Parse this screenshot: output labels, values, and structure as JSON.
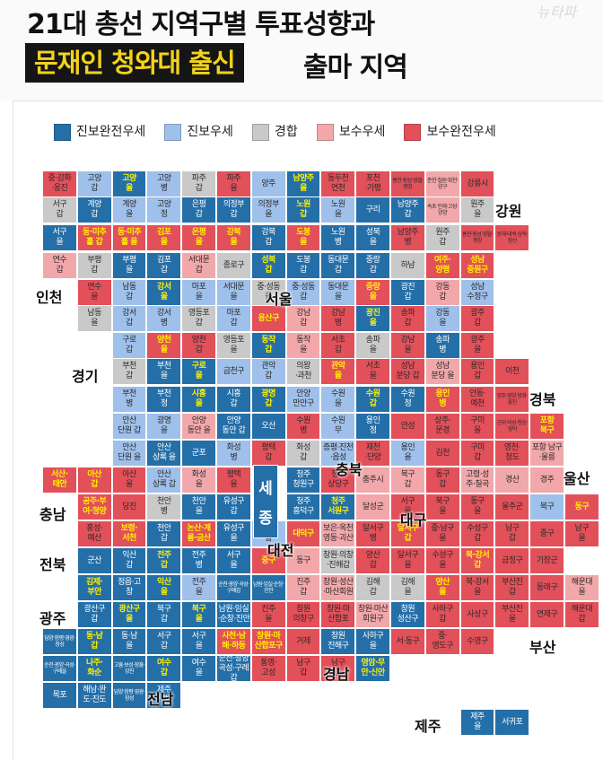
{
  "header": {
    "title": "21대 총선 지역구별 투표성향과",
    "highlight": "문재인 청와대 출신",
    "title_suffix": "출마 지역",
    "watermark": "뉴타파"
  },
  "legend": [
    {
      "label": "진보완전우세",
      "color": "#256fa8"
    },
    {
      "label": "진보우세",
      "color": "#9fc0ea"
    },
    {
      "label": "경합",
      "color": "#c9c9c9"
    },
    {
      "label": "보수우세",
      "color": "#f2a8ab"
    },
    {
      "label": "보수완전우세",
      "color": "#e2505a"
    }
  ],
  "colors": {
    "A": "#256fa8",
    "B": "#9fc0ea",
    "C": "#c9c9c9",
    "D": "#f2a8ab",
    "E": "#e2505a",
    "highlight_text": "#fff200"
  },
  "regions": [
    {
      "name": "강원"
    },
    {
      "name": "인천"
    },
    {
      "name": "서울"
    },
    {
      "name": "경기"
    },
    {
      "name": "경북"
    },
    {
      "name": "충북"
    },
    {
      "name": "울산"
    },
    {
      "name": "충남"
    },
    {
      "name": "대구"
    },
    {
      "name": "대전"
    },
    {
      "name": "전북"
    },
    {
      "name": "광주"
    },
    {
      "name": "부산"
    },
    {
      "name": "경남"
    },
    {
      "name": "전남"
    },
    {
      "name": "제주"
    }
  ],
  "sejong": {
    "line1": "세",
    "line2": "종"
  },
  "cells": [
    [
      "중·강화\n·옹진",
      "E",
      0
    ],
    [
      "고양\n갑",
      "B",
      0
    ],
    [
      "고양\n을",
      "A",
      1
    ],
    [
      "고양\n병",
      "B",
      0
    ],
    [
      "파주\n갑",
      "C",
      0
    ],
    [
      "파주\n을",
      "E",
      0
    ],
    [
      "양주",
      "B",
      0
    ],
    [
      "남양주\n을",
      "A",
      1
    ],
    [
      "동두천\n연천",
      "E",
      0
    ],
    [
      "포천\n·가평",
      "E",
      0
    ],
    [
      "홍천·횡성·영월·평창",
      "E",
      2
    ],
    [
      "춘천·철원·화천·양구",
      "D",
      2
    ],
    [
      "강릉시",
      "E",
      0
    ],
    [
      "서구\n갑",
      "C",
      0
    ],
    [
      "계양\n갑",
      "A",
      0
    ],
    [
      "계양\n을",
      "B",
      0
    ],
    [
      "고양\n정",
      "B",
      0
    ],
    [
      "은평\n갑",
      "A",
      0
    ],
    [
      "의정부\n갑",
      "A",
      0
    ],
    [
      "의정부\n을",
      "B",
      0
    ],
    [
      "노원\n갑",
      "A",
      1
    ],
    [
      "노원\n을",
      "B",
      0
    ],
    [
      "구리",
      "A",
      0
    ],
    [
      "남양주\n갑",
      "A",
      0
    ],
    [
      "속초·인제·고성·양양",
      "D",
      2
    ],
    [
      "원주\n을",
      "C",
      0
    ],
    [
      "서구\n을",
      "A",
      0
    ],
    [
      "동·미추\n홀 갑",
      "E",
      1
    ],
    [
      "동·미추\n홀 을",
      "E",
      1
    ],
    [
      "김포\n을",
      "E",
      1
    ],
    [
      "은평\n을",
      "E",
      1
    ],
    [
      "강북\n을",
      "E",
      1
    ],
    [
      "강북\n갑",
      "A",
      0
    ],
    [
      "도봉\n을",
      "E",
      1
    ],
    [
      "노원\n병",
      "A",
      0
    ],
    [
      "성북\n을",
      "A",
      0
    ],
    [
      "남양주\n병",
      "E",
      0
    ],
    [
      "원주\n갑",
      "C",
      0
    ],
    [
      "홍천·횡성·영월·평창",
      "E",
      2
    ],
    [
      "동해·태백·삼척·정선",
      "E",
      2
    ],
    [
      "연수\n갑",
      "D",
      0
    ],
    [
      "부평\n갑",
      "C",
      0
    ],
    [
      "부평\n을",
      "A",
      0
    ],
    [
      "김포\n갑",
      "A",
      0
    ],
    [
      "서대문\n갑",
      "D",
      0
    ],
    [
      "종로구",
      "C",
      0
    ],
    [
      "성북\n갑",
      "A",
      1
    ],
    [
      "도봉\n갑",
      "A",
      0
    ],
    [
      "동대문\n갑",
      "A",
      0
    ],
    [
      "중랑\n갑",
      "A",
      0
    ],
    [
      "하남",
      "C",
      0
    ],
    [
      "여주·\n양평",
      "E",
      1
    ],
    [
      "성남\n중원구",
      "E",
      1
    ],
    [
      "연수\n을",
      "E",
      0
    ],
    [
      "남동\n갑",
      "B",
      0
    ],
    [
      "강서\n을",
      "A",
      1
    ],
    [
      "마포\n을",
      "B",
      0
    ],
    [
      "서대문\n을",
      "B",
      0
    ],
    [
      "중·성동\n을",
      "C",
      0
    ],
    [
      "중·성동\n갑",
      "B",
      0
    ],
    [
      "동대문\n을",
      "B",
      0
    ],
    [
      "중랑\n을",
      "E",
      1
    ],
    [
      "광진\n갑",
      "A",
      0
    ],
    [
      "강동\n갑",
      "D",
      0
    ],
    [
      "성남\n수정구",
      "B",
      0
    ],
    [
      "남동\n을",
      "C",
      0
    ],
    [
      "강서\n갑",
      "B",
      0
    ],
    [
      "강서\n병",
      "B",
      0
    ],
    [
      "영등포\n갑",
      "C",
      0
    ],
    [
      "마포\n갑",
      "B",
      0
    ],
    [
      "용산구",
      "E",
      1
    ],
    [
      "강남\n갑",
      "D",
      0
    ],
    [
      "강남\n병",
      "E",
      0
    ],
    [
      "광진\n을",
      "A",
      1
    ],
    [
      "송파\n갑",
      "E",
      0
    ],
    [
      "강동\n을",
      "B",
      0
    ],
    [
      "광주\n갑",
      "E",
      0
    ],
    [
      "구로\n갑",
      "B",
      0
    ],
    [
      "양천\n을",
      "E",
      1
    ],
    [
      "양천\n갑",
      "E",
      0
    ],
    [
      "영등포\n을",
      "C",
      0
    ],
    [
      "동작\n갑",
      "A",
      1
    ],
    [
      "동작\n을",
      "D",
      0
    ],
    [
      "서초\n갑",
      "E",
      0
    ],
    [
      "송파\n을",
      "C",
      0
    ],
    [
      "강남\n을",
      "E",
      0
    ],
    [
      "송파\n병",
      "A",
      0
    ],
    [
      "광주\n을",
      "E",
      0
    ],
    [
      "부천\n갑",
      "C",
      0
    ],
    [
      "부천\n을",
      "A",
      0
    ],
    [
      "구로\n을",
      "A",
      1
    ],
    [
      "금천구",
      "B",
      0
    ],
    [
      "관악\n갑",
      "B",
      0
    ],
    [
      "의왕\n·과천",
      "C",
      0
    ],
    [
      "관악\n을",
      "E",
      1
    ],
    [
      "서초\n을",
      "E",
      0
    ],
    [
      "성남\n분당 갑",
      "E",
      0
    ],
    [
      "성남\n분당 을",
      "D",
      0
    ],
    [
      "용인\n갑",
      "E",
      0
    ],
    [
      "이천",
      "E",
      0
    ],
    [
      "부천\n병",
      "B",
      0
    ],
    [
      "부천\n정",
      "A",
      0
    ],
    [
      "시흥\n을",
      "A",
      1
    ],
    [
      "시흥\n갑",
      "A",
      0
    ],
    [
      "광명\n갑",
      "A",
      1
    ],
    [
      "안양\n만안구",
      "B",
      0
    ],
    [
      "수원\n을",
      "B",
      0
    ],
    [
      "수원\n갑",
      "A",
      1
    ],
    [
      "수원\n정",
      "A",
      0
    ],
    [
      "용인\n병",
      "E",
      1
    ],
    [
      "안동·\n예천",
      "E",
      0
    ],
    [
      "영주·영양·봉화·울진",
      "E",
      2
    ],
    [
      "안산\n단원 갑",
      "B",
      0
    ],
    [
      "광명\n을",
      "B",
      0
    ],
    [
      "안양\n동안 을",
      "D",
      0
    ],
    [
      "안양\n동안 갑",
      "A",
      0
    ],
    [
      "오산",
      "A",
      0
    ],
    [
      "수원\n병",
      "E",
      0
    ],
    [
      "수원\n무",
      "B",
      0
    ],
    [
      "용인\n정",
      "A",
      0
    ],
    [
      "안성",
      "E",
      0
    ],
    [
      "상주·\n문경",
      "E",
      0
    ],
    [
      "구미\n을",
      "E",
      0
    ],
    [
      "군위·의성·청송·영덕",
      "E",
      2
    ],
    [
      "포항\n북구",
      "E",
      1
    ],
    [
      "안산\n단원 을",
      "B",
      0
    ],
    [
      "안산\n상록 을",
      "A",
      0
    ],
    [
      "군포",
      "A",
      0
    ],
    [
      "화성\n병",
      "B",
      0
    ],
    [
      "평택\n갑",
      "E",
      0
    ],
    [
      "화성\n갑",
      "C",
      0
    ],
    [
      "증평·진천\n·음성",
      "B",
      0
    ],
    [
      "재천\n·단양",
      "E",
      0
    ],
    [
      "용인\n을",
      "B",
      0
    ],
    [
      "김천",
      "E",
      0
    ],
    [
      "구미\n갑",
      "E",
      0
    ],
    [
      "영천·\n청도",
      "E",
      0
    ],
    [
      "포항 남구\n·울릉",
      "D",
      0
    ],
    [
      "서산·\n태안",
      "E",
      1
    ],
    [
      "아산\n갑",
      "E",
      1
    ],
    [
      "아산\n을",
      "E",
      0
    ],
    [
      "안산\n상록 갑",
      "B",
      0
    ],
    [
      "화성\n을",
      "D",
      0
    ],
    [
      "평택\n을",
      "E",
      0
    ],
    [
      "청주\n청원구",
      "A",
      0
    ],
    [
      "청주\n상당구",
      "E",
      0
    ],
    [
      "충주시",
      "D",
      0
    ],
    [
      "북구\n갑",
      "D",
      0
    ],
    [
      "동구\n갑",
      "E",
      0
    ],
    [
      "고령·성\n주·칠곡",
      "D",
      0
    ],
    [
      "경산",
      "D",
      0
    ],
    [
      "경주",
      "D",
      0
    ],
    [
      "공주·부\n여·청양",
      "E",
      1
    ],
    [
      "당진",
      "E",
      0
    ],
    [
      "천안\n병",
      "C",
      0
    ],
    [
      "천안\n을",
      "A",
      0
    ],
    [
      "유성구\n갑",
      "A",
      0
    ],
    [
      "청주\n흥덕구",
      "A",
      0
    ],
    [
      "청주\n서원구",
      "A",
      1
    ],
    [
      "달성군",
      "D",
      0
    ],
    [
      "서구\n을",
      "E",
      0
    ],
    [
      "북구\n을",
      "E",
      0
    ],
    [
      "동구\n을",
      "E",
      0
    ],
    [
      "울주군",
      "E",
      0
    ],
    [
      "북구",
      "B",
      0
    ],
    [
      "동구",
      "E",
      1
    ],
    [
      "홍성·\n예산",
      "E",
      0
    ],
    [
      "보령·\n서천",
      "E",
      1
    ],
    [
      "천안\n갑",
      "A",
      0
    ],
    [
      "논산·계\n룡·금산",
      "E",
      1
    ],
    [
      "유성구\n을",
      "A",
      0
    ],
    [
      "서구\n갑",
      "B",
      0
    ],
    [
      "대덕구",
      "E",
      1
    ],
    [
      "보은·옥천\n영동·괴산",
      "D",
      0
    ],
    [
      "달서구\n병",
      "E",
      0
    ],
    [
      "달서구\n갑",
      "E",
      1
    ],
    [
      "중·남구\n을",
      "E",
      0
    ],
    [
      "수성구\n갑",
      "E",
      0
    ],
    [
      "남구\n갑",
      "E",
      0
    ],
    [
      "중구",
      "E",
      0
    ],
    [
      "남구\n을",
      "E",
      0
    ],
    [
      "군산",
      "A",
      0
    ],
    [
      "익산\n갑",
      "A",
      0
    ],
    [
      "전주\n갑",
      "A",
      1
    ],
    [
      "전주\n병",
      "A",
      0
    ],
    [
      "서구\n을",
      "A",
      0
    ],
    [
      "중구",
      "E",
      1
    ],
    [
      "동구",
      "D",
      0
    ],
    [
      "창원·의창\n·진해갑",
      "C",
      0
    ],
    [
      "양산\n갑",
      "E",
      0
    ],
    [
      "달서구\n을",
      "E",
      0
    ],
    [
      "수성구\n을",
      "E",
      0
    ],
    [
      "북·강서\n갑",
      "E",
      1
    ],
    [
      "금정구",
      "E",
      0
    ],
    [
      "기장군",
      "E",
      0
    ],
    [
      "김제·\n부안",
      "A",
      1
    ],
    [
      "정읍·고\n창",
      "A",
      0
    ],
    [
      "익산\n을",
      "A",
      1
    ],
    [
      "전주\n을",
      "B",
      0
    ],
    [
      "순천·광양·곡성·구례갑",
      "A",
      2
    ],
    [
      "남원·임실·순창·진안",
      "A",
      2
    ],
    [
      "진주\n갑",
      "D",
      0
    ],
    [
      "창원·성산\n·마산회원",
      "D",
      0
    ],
    [
      "김해\n갑",
      "C",
      0
    ],
    [
      "김해\n을",
      "C",
      0
    ],
    [
      "양산\n을",
      "E",
      1
    ],
    [
      "북·강서\n을",
      "E",
      0
    ],
    [
      "부산진\n갑",
      "E",
      0
    ],
    [
      "동래구",
      "E",
      0
    ],
    [
      "해운대\n을",
      "D",
      0
    ],
    [
      "광산구\n갑",
      "A",
      0
    ],
    [
      "광산구\n을",
      "A",
      1
    ],
    [
      "북구\n갑",
      "A",
      0
    ],
    [
      "북구\n을",
      "A",
      1
    ],
    [
      "남원·임실\n·순창·진안",
      "A",
      0
    ],
    [
      "진주\n을",
      "E",
      0
    ],
    [
      "창원\n의창구",
      "E",
      0
    ],
    [
      "창원·마\n산합포",
      "E",
      0
    ],
    [
      "창원·마산\n회원구",
      "D",
      0
    ],
    [
      "창원\n성산구",
      "A",
      0
    ],
    [
      "사하구\n갑",
      "E",
      0
    ],
    [
      "사상구",
      "E",
      0
    ],
    [
      "부산진\n을",
      "E",
      0
    ],
    [
      "연제구",
      "E",
      0
    ],
    [
      "해운대\n갑",
      "E",
      0
    ],
    [
      "담양·함평·영광·장성",
      "A",
      2
    ],
    [
      "동·남\n갑",
      "A",
      1
    ],
    [
      "동·남\n을",
      "A",
      0
    ],
    [
      "서구\n갑",
      "A",
      0
    ],
    [
      "서구\n을",
      "A",
      0
    ],
    [
      "사천·남\n해·하동",
      "E",
      1
    ],
    [
      "창원·마\n산합포구",
      "E",
      1
    ],
    [
      "거제",
      "E",
      0
    ],
    [
      "창원\n진해구",
      "A",
      0
    ],
    [
      "사하구\n을",
      "A",
      0
    ],
    [
      "서·동구",
      "E",
      0
    ],
    [
      "중·\n영도구",
      "E",
      0
    ],
    [
      "수영구",
      "E",
      0
    ],
    [
      "순천·광양·곡성·구례을",
      "A",
      2
    ],
    [
      "나주·\n화순",
      "A",
      1
    ],
    [
      "고흥·보성·장흥·강진",
      "A",
      2
    ],
    [
      "여수\n갑",
      "A",
      1
    ],
    [
      "여수\n을",
      "A",
      0
    ],
    [
      "순천·광양\n곡성·구례갑",
      "A",
      0
    ],
    [
      "통영·\n고성",
      "E",
      0
    ],
    [
      "남구\n갑",
      "E",
      0
    ],
    [
      "남구\n을",
      "E",
      0
    ],
    [
      "영암·무\n안·신안",
      "A",
      1
    ],
    [
      "목포",
      "A",
      0
    ],
    [
      "해남·완\n도·진도",
      "A",
      0
    ],
    [
      "담양·함평·영광·장성",
      "A",
      2
    ],
    [
      "제주\n갑",
      "A",
      0
    ],
    [
      "제주\n을",
      "A",
      0
    ],
    [
      "서귀포",
      "A",
      0
    ]
  ]
}
